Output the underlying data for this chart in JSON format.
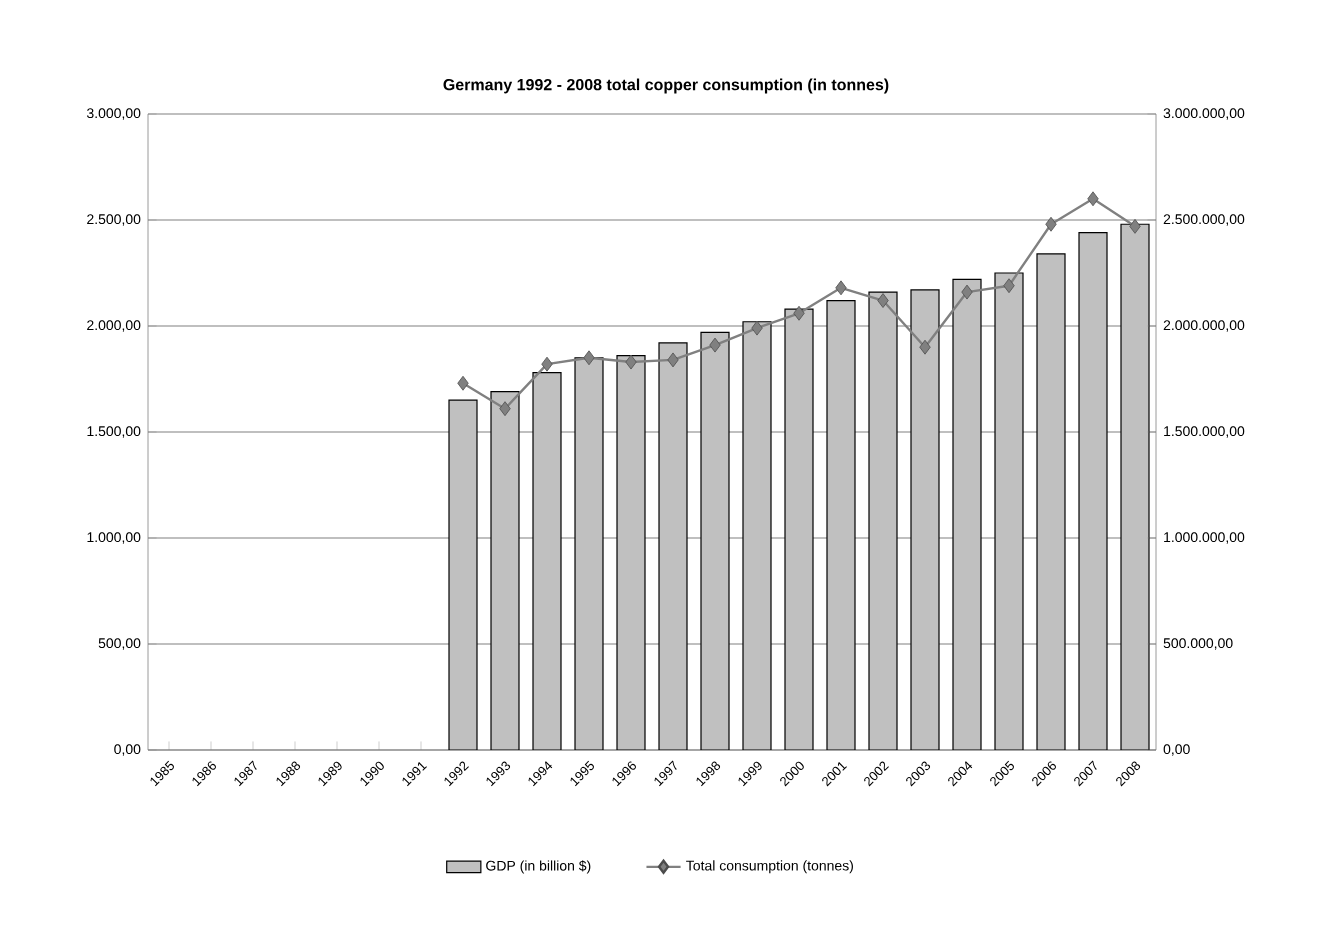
{
  "chart_data": {
    "type": "bar",
    "title": "Germany 1992 - 2008  total copper consumption (in tonnes)",
    "categories": [
      "1985",
      "1986",
      "1987",
      "1988",
      "1989",
      "1990",
      "1991",
      "1992",
      "1993",
      "1994",
      "1995",
      "1996",
      "1997",
      "1998",
      "1999",
      "2000",
      "2001",
      "2002",
      "2003",
      "2004",
      "2005",
      "2006",
      "2007",
      "2008"
    ],
    "series": [
      {
        "name": "GDP (in billion $)",
        "color": "#c0c0c0",
        "values": [
          null,
          null,
          null,
          null,
          null,
          null,
          null,
          1650,
          1690,
          1780,
          1850,
          1860,
          1920,
          1970,
          2020,
          2080,
          2120,
          2160,
          2170,
          2220,
          2250,
          2340,
          2440,
          2480
        ]
      },
      {
        "name": "Total consumption (tonnes)",
        "type": "line",
        "axis": "y2",
        "color": "#808080",
        "marker": "diamond",
        "line_style": "solid",
        "values": [
          null,
          null,
          null,
          null,
          null,
          null,
          null,
          1730000,
          1610000,
          1820000,
          1850000,
          1830000,
          1840000,
          1910000,
          1990000,
          2060000,
          2180000,
          2120000,
          1900000,
          2160000,
          2190000,
          2480000,
          2600000,
          2470000
        ]
      }
    ],
    "ylim": [
      0,
      3000
    ],
    "yticks": [
      {
        "value": 0,
        "label": "0,00"
      },
      {
        "value": 500,
        "label": "500,00"
      },
      {
        "value": 1000,
        "label": "1.000,00"
      },
      {
        "value": 1500,
        "label": "1.500,00"
      },
      {
        "value": 2000,
        "label": "2.000,00"
      },
      {
        "value": 2500,
        "label": "2.500,00"
      },
      {
        "value": 3000,
        "label": "3.000,00"
      }
    ],
    "y2lim": [
      0,
      3000000
    ],
    "y2ticks": [
      {
        "value": 0,
        "label": "0,00"
      },
      {
        "value": 500000,
        "label": "500.000,00"
      },
      {
        "value": 1000000,
        "label": "1.000.000,00"
      },
      {
        "value": 1500000,
        "label": "1.500.000,00"
      },
      {
        "value": 2000000,
        "label": "2.000.000,00"
      },
      {
        "value": 2500000,
        "label": "2.500.000,00"
      },
      {
        "value": 3000000,
        "label": "3.000.000,00"
      }
    ],
    "grid": "y",
    "legend": "bottom"
  }
}
